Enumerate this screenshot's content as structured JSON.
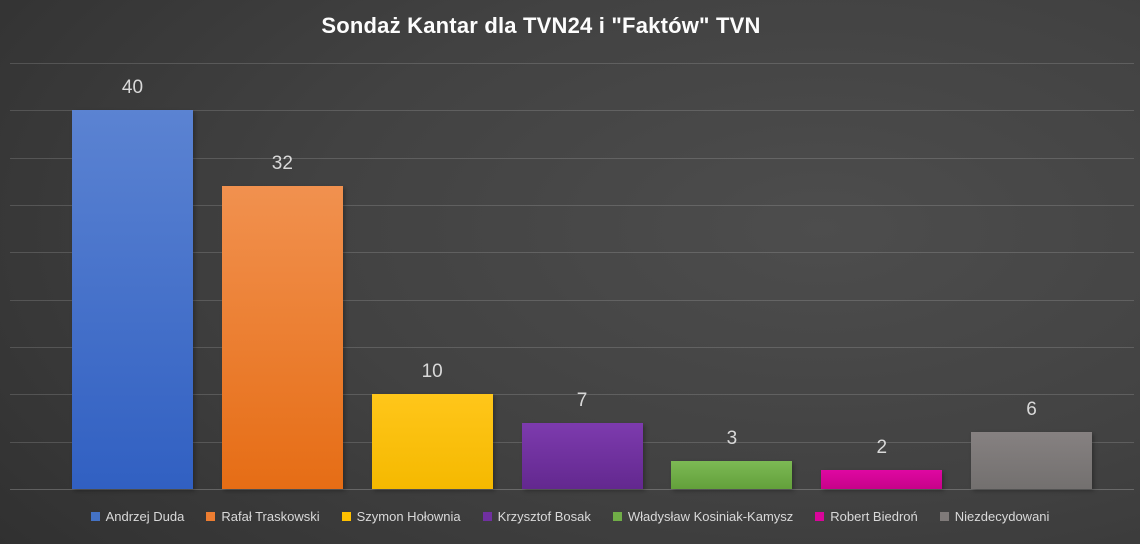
{
  "chart_data": {
    "type": "bar",
    "title": "Sondaż Kantar dla TVN24 i \"Faktów\" TVN",
    "categories": [
      "Andrzej Duda",
      "Rafał Traskowski",
      "Szymon Hołownia",
      "Krzysztof Bosak",
      "Władysław Kosiniak-Kamysz",
      "Robert Biedroń",
      "Niezdecydowani"
    ],
    "values": [
      40,
      32,
      10,
      7,
      3,
      2,
      6
    ],
    "data_labels": [
      "40",
      "32",
      "10",
      "7",
      "3",
      "2",
      "6"
    ],
    "colors": [
      "#4472c4",
      "#ed7d31",
      "#ffc000",
      "#7030a0",
      "#70ad47",
      "#d9059a",
      "#7f7a79"
    ],
    "gradients": [
      [
        "#5b83d2",
        "#3160c2"
      ],
      [
        "#f1914f",
        "#e66d15"
      ],
      [
        "#ffc61a",
        "#f5b900"
      ],
      [
        "#7d3bae",
        "#63288f"
      ],
      [
        "#7cb954",
        "#63a03b"
      ],
      [
        "#df08a2",
        "#c70289"
      ],
      [
        "#868181",
        "#73706f"
      ]
    ],
    "xlabel": "",
    "ylabel": "",
    "ylim": [
      0,
      45
    ],
    "grid_step": 5,
    "grid": true,
    "y_axis_labels_visible": false,
    "legend_position": "bottom",
    "title_color": "#fdfdfd",
    "data_label_color": "#d9d9d9",
    "legend_text_color": "#d9d9d9",
    "background_base_color": "#3a3a3a"
  }
}
